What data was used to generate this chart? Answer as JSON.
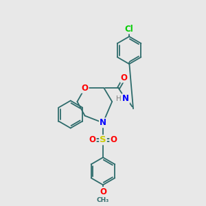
{
  "bg_color": "#e8e8e8",
  "bond_color": "#2d6b6b",
  "atom_colors": {
    "O": "#ff0000",
    "N": "#0000ff",
    "S": "#cccc00",
    "Cl": "#00cc00",
    "C": "#2d6b6b",
    "H": "#808080"
  },
  "font_size": 7.5,
  "line_width": 1.3,
  "fig_size": [
    3.0,
    3.0
  ],
  "dpi": 100
}
